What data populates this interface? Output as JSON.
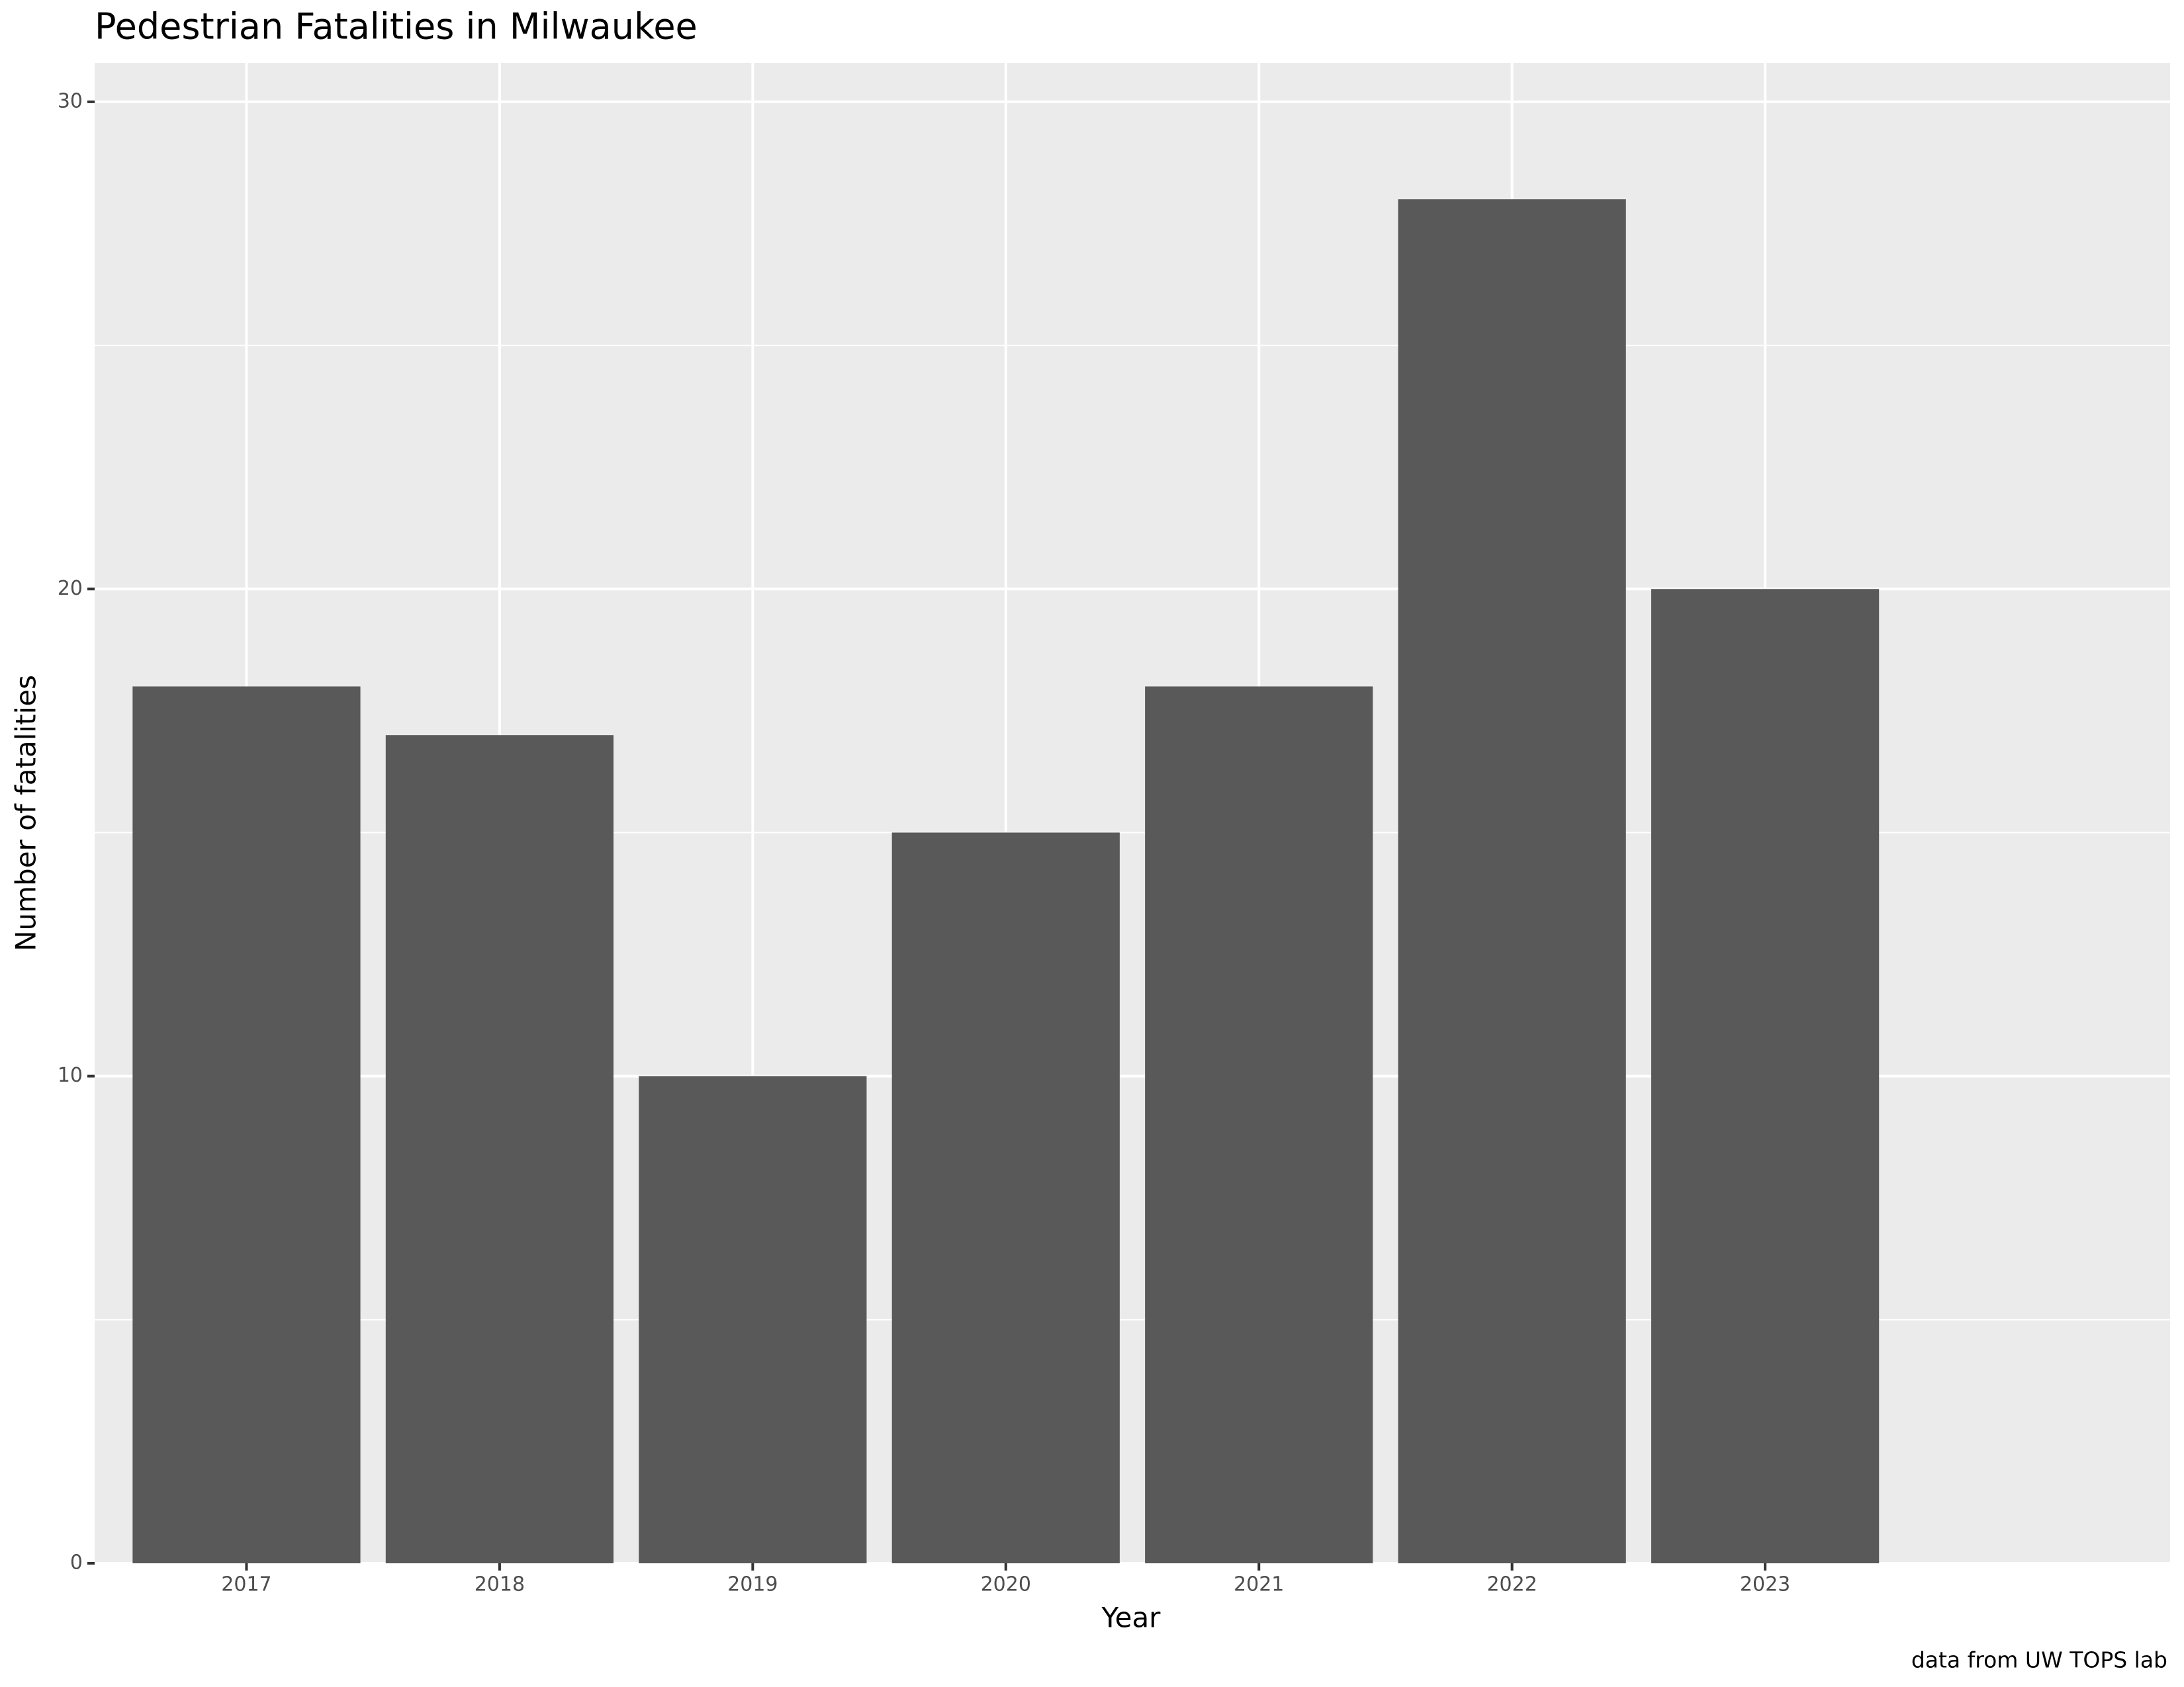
{
  "chart_data": {
    "type": "bar",
    "title": "Pedestrian Fatalities in Milwaukee",
    "x_label": "Year",
    "y_label": "Number of fatalities",
    "caption": "data from UW TOPS lab",
    "categories": [
      "2017",
      "2018",
      "2019",
      "2020",
      "2021",
      "2022",
      "2023"
    ],
    "values": [
      18,
      17,
      10,
      15,
      18,
      28,
      20
    ],
    "color": "#595959",
    "ylim": [
      0,
      30.8
    ],
    "yticks": [
      0,
      10,
      20,
      30
    ],
    "minor_yticks": [
      5,
      15,
      25
    ],
    "grid": true
  }
}
